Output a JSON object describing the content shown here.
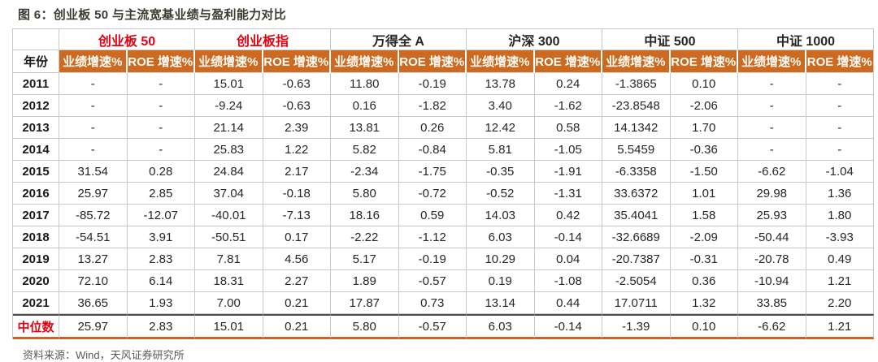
{
  "title": "图 6：创业板 50 与主流宽基业绩与盈利能力对比",
  "source": "资料来源：Wind，天风证券研究所",
  "colors": {
    "header_orange": "#cb6a20",
    "accent_red": "#e60012",
    "bottom_rule_orange": "#c96222",
    "median_top_rule": "#4d4d4d",
    "grid_line": "#c8c8c8",
    "title_color": "#3e3a31",
    "source_color": "#595959"
  },
  "table": {
    "year_header": "年份",
    "sub_headers": [
      "业绩增速%",
      "ROE 增速%"
    ],
    "groups": [
      {
        "label": "创业板 50",
        "red": true
      },
      {
        "label": "创业板指",
        "red": true
      },
      {
        "label": "万得全 A",
        "red": false
      },
      {
        "label": "沪深 300",
        "red": false
      },
      {
        "label": "中证 500",
        "red": false
      },
      {
        "label": "中证 1000",
        "red": false
      }
    ],
    "rows": [
      {
        "year": "2011",
        "median": false,
        "values": [
          "-",
          "-",
          "15.01",
          "-0.63",
          "11.80",
          "-0.19",
          "13.78",
          "0.24",
          "-1.3865",
          "0.10",
          "-",
          "-"
        ]
      },
      {
        "year": "2012",
        "median": false,
        "values": [
          "-",
          "-",
          "-9.24",
          "-0.63",
          "0.16",
          "-1.82",
          "3.40",
          "-1.62",
          "-23.8548",
          "-2.06",
          "-",
          "-"
        ]
      },
      {
        "year": "2013",
        "median": false,
        "values": [
          "-",
          "-",
          "21.14",
          "2.39",
          "13.81",
          "0.26",
          "12.42",
          "0.58",
          "14.1342",
          "1.70",
          "-",
          "-"
        ]
      },
      {
        "year": "2014",
        "median": false,
        "values": [
          "-",
          "-",
          "25.83",
          "1.22",
          "5.82",
          "-0.84",
          "5.81",
          "-1.05",
          "5.5459",
          "-0.36",
          "-",
          "-"
        ]
      },
      {
        "year": "2015",
        "median": false,
        "values": [
          "31.54",
          "0.28",
          "24.84",
          "2.17",
          "-2.34",
          "-1.75",
          "-0.35",
          "-1.91",
          "-6.3358",
          "-1.50",
          "-6.62",
          "-1.04"
        ]
      },
      {
        "year": "2016",
        "median": false,
        "values": [
          "25.97",
          "2.85",
          "37.04",
          "-0.18",
          "5.80",
          "-0.72",
          "-0.52",
          "-1.31",
          "33.6372",
          "1.01",
          "29.98",
          "1.36"
        ]
      },
      {
        "year": "2017",
        "median": false,
        "values": [
          "-85.72",
          "-12.07",
          "-40.01",
          "-7.13",
          "18.16",
          "0.59",
          "14.03",
          "0.42",
          "35.4041",
          "1.58",
          "25.93",
          "1.80"
        ]
      },
      {
        "year": "2018",
        "median": false,
        "values": [
          "-54.51",
          "3.91",
          "-50.51",
          "0.17",
          "-2.22",
          "-1.12",
          "6.03",
          "-0.14",
          "-32.6689",
          "-2.09",
          "-50.44",
          "-3.93"
        ]
      },
      {
        "year": "2019",
        "median": false,
        "values": [
          "13.27",
          "2.83",
          "7.81",
          "4.56",
          "5.17",
          "-0.19",
          "10.29",
          "0.04",
          "-20.7387",
          "-0.31",
          "-20.78",
          "0.49"
        ]
      },
      {
        "year": "2020",
        "median": false,
        "values": [
          "72.10",
          "6.14",
          "18.31",
          "2.27",
          "1.89",
          "-0.57",
          "0.19",
          "-1.08",
          "-2.5054",
          "0.36",
          "-10.94",
          "1.21"
        ]
      },
      {
        "year": "2021",
        "median": false,
        "values": [
          "36.65",
          "1.93",
          "7.00",
          "0.21",
          "17.87",
          "0.73",
          "13.14",
          "0.44",
          "17.0711",
          "1.32",
          "33.85",
          "2.20"
        ]
      },
      {
        "year": "中位数",
        "median": true,
        "values": [
          "25.97",
          "2.83",
          "15.01",
          "0.21",
          "5.80",
          "-0.57",
          "6.03",
          "-0.14",
          "-1.39",
          "0.10",
          "-6.62",
          "1.21"
        ]
      }
    ]
  }
}
